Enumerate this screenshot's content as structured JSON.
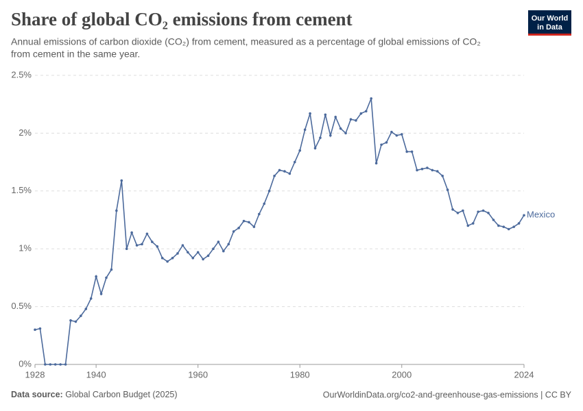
{
  "chart_data": {
    "type": "line",
    "title": "Share of global CO₂ emissions from cement",
    "subtitle_lines": [
      "Annual emissions of carbon dioxide (CO₂) from cement, measured as a percentage of global emissions of CO₂",
      "from cement in the same year."
    ],
    "x": [
      1928,
      1929,
      1930,
      1931,
      1932,
      1933,
      1934,
      1935,
      1936,
      1937,
      1938,
      1939,
      1940,
      1941,
      1942,
      1943,
      1944,
      1945,
      1946,
      1947,
      1948,
      1949,
      1950,
      1951,
      1952,
      1953,
      1954,
      1955,
      1956,
      1957,
      1958,
      1959,
      1960,
      1961,
      1962,
      1963,
      1964,
      1965,
      1966,
      1967,
      1968,
      1969,
      1970,
      1971,
      1972,
      1973,
      1974,
      1975,
      1976,
      1977,
      1978,
      1979,
      1980,
      1981,
      1982,
      1983,
      1984,
      1985,
      1986,
      1987,
      1988,
      1989,
      1990,
      1991,
      1992,
      1993,
      1994,
      1995,
      1996,
      1997,
      1998,
      1999,
      2000,
      2001,
      2002,
      2003,
      2004,
      2005,
      2006,
      2007,
      2008,
      2009,
      2010,
      2011,
      2012,
      2013,
      2014,
      2015,
      2016,
      2017,
      2018,
      2019,
      2020,
      2021,
      2022,
      2023,
      2024
    ],
    "series": [
      {
        "name": "Mexico",
        "color": "#4c6a9c",
        "values": [
          0.3,
          0.31,
          0,
          0,
          0,
          0,
          0,
          0.38,
          0.37,
          0.42,
          0.48,
          0.57,
          0.76,
          0.61,
          0.75,
          0.82,
          1.33,
          1.59,
          1.0,
          1.14,
          1.03,
          1.04,
          1.13,
          1.06,
          1.02,
          0.92,
          0.89,
          0.92,
          0.96,
          1.03,
          0.97,
          0.92,
          0.97,
          0.91,
          0.94,
          1.0,
          1.06,
          0.98,
          1.04,
          1.15,
          1.18,
          1.24,
          1.23,
          1.19,
          1.3,
          1.39,
          1.5,
          1.63,
          1.68,
          1.67,
          1.65,
          1.75,
          1.85,
          2.03,
          2.17,
          1.87,
          1.96,
          2.16,
          1.98,
          2.14,
          2.04,
          2.0,
          2.12,
          2.11,
          2.17,
          2.19,
          2.3,
          1.74,
          1.9,
          1.92,
          2.01,
          1.98,
          1.99,
          1.84,
          1.84,
          1.68,
          1.69,
          1.7,
          1.68,
          1.67,
          1.63,
          1.51,
          1.34,
          1.31,
          1.33,
          1.2,
          1.22,
          1.32,
          1.33,
          1.31,
          1.25,
          1.2,
          1.19,
          1.17,
          1.19,
          1.22,
          1.29
        ]
      }
    ],
    "xlim": [
      1928,
      2024
    ],
    "xticks": [
      1928,
      1940,
      1960,
      1980,
      2000,
      2024
    ],
    "ylim": [
      0,
      2.5
    ],
    "yticks": [
      {
        "value": 0,
        "label": "0%"
      },
      {
        "value": 0.5,
        "label": "0.5%"
      },
      {
        "value": 1,
        "label": "1%"
      },
      {
        "value": 1.5,
        "label": "1.5%"
      },
      {
        "value": 2,
        "label": "2%"
      },
      {
        "value": 2.5,
        "label": "2.5%"
      }
    ],
    "grid": true
  },
  "logo": [
    "Our World",
    "in Data"
  ],
  "footer": {
    "source_label": "Data source:",
    "source": "Global Carbon Budget (2025)",
    "url": "OurWorldinData.org/co2-and-greenhouse-gas-emissions | CC BY"
  }
}
